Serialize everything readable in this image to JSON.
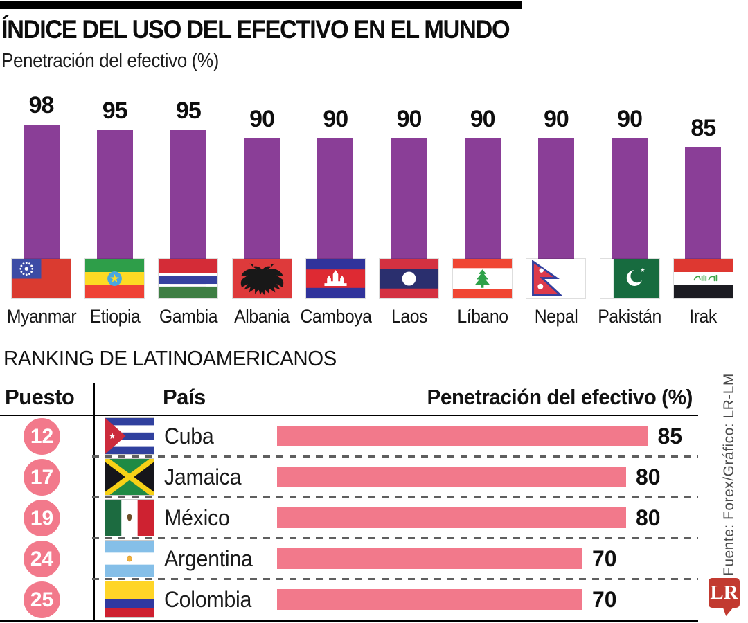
{
  "header": {
    "title": "ÍNDICE DEL USO DEL EFECTIVO EN EL MUNDO",
    "subtitle": "Penetración del efectivo (%)"
  },
  "chart_data": [
    {
      "type": "bar",
      "title": "ÍNDICE DEL USO DEL EFECTIVO EN EL MUNDO",
      "ylabel": "Penetración del efectivo (%)",
      "ylim": [
        0,
        100
      ],
      "grid": false,
      "bar_color": "#8A3E97",
      "categories": [
        "Myanmar",
        "Etiopia",
        "Gambia",
        "Albania",
        "Camboya",
        "Laos",
        "Líbano",
        "Nepal",
        "Pakistán",
        "Irak"
      ],
      "values": [
        98,
        95,
        95,
        90,
        90,
        90,
        90,
        90,
        90,
        85
      ],
      "flags": [
        "myanmar",
        "ethiopia",
        "gambia",
        "albania",
        "cambodia",
        "laos",
        "lebanon",
        "nepal",
        "pakistan",
        "iraq"
      ]
    },
    {
      "type": "bar",
      "orientation": "horizontal",
      "title": "RANKING DE LATINOAMERICANOS",
      "columns": [
        "Puesto",
        "País",
        "Penetración del efectivo (%)"
      ],
      "bar_color": "#F2798B",
      "rank_badge_color": "#F2798B",
      "xlim": [
        0,
        100
      ],
      "rows": [
        {
          "rank": 12,
          "country": "Cuba",
          "flag": "cuba",
          "value": 85
        },
        {
          "rank": 17,
          "country": "Jamaica",
          "flag": "jamaica",
          "value": 80
        },
        {
          "rank": 19,
          "country": "México",
          "flag": "mexico",
          "value": 80
        },
        {
          "rank": 24,
          "country": "Argentina",
          "flag": "argentina",
          "value": 70
        },
        {
          "rank": 25,
          "country": "Colombia",
          "flag": "colombia",
          "value": 70
        }
      ]
    }
  ],
  "ranking": {
    "title": "RANKING DE LATINOAMERICANOS",
    "columns": [
      "Puesto",
      "País",
      "Penetración del efectivo (%)"
    ]
  },
  "source": "Fuente: Forex/Gráfico: LR-LM",
  "logo": {
    "text": "LR",
    "color": "#C23A30"
  }
}
